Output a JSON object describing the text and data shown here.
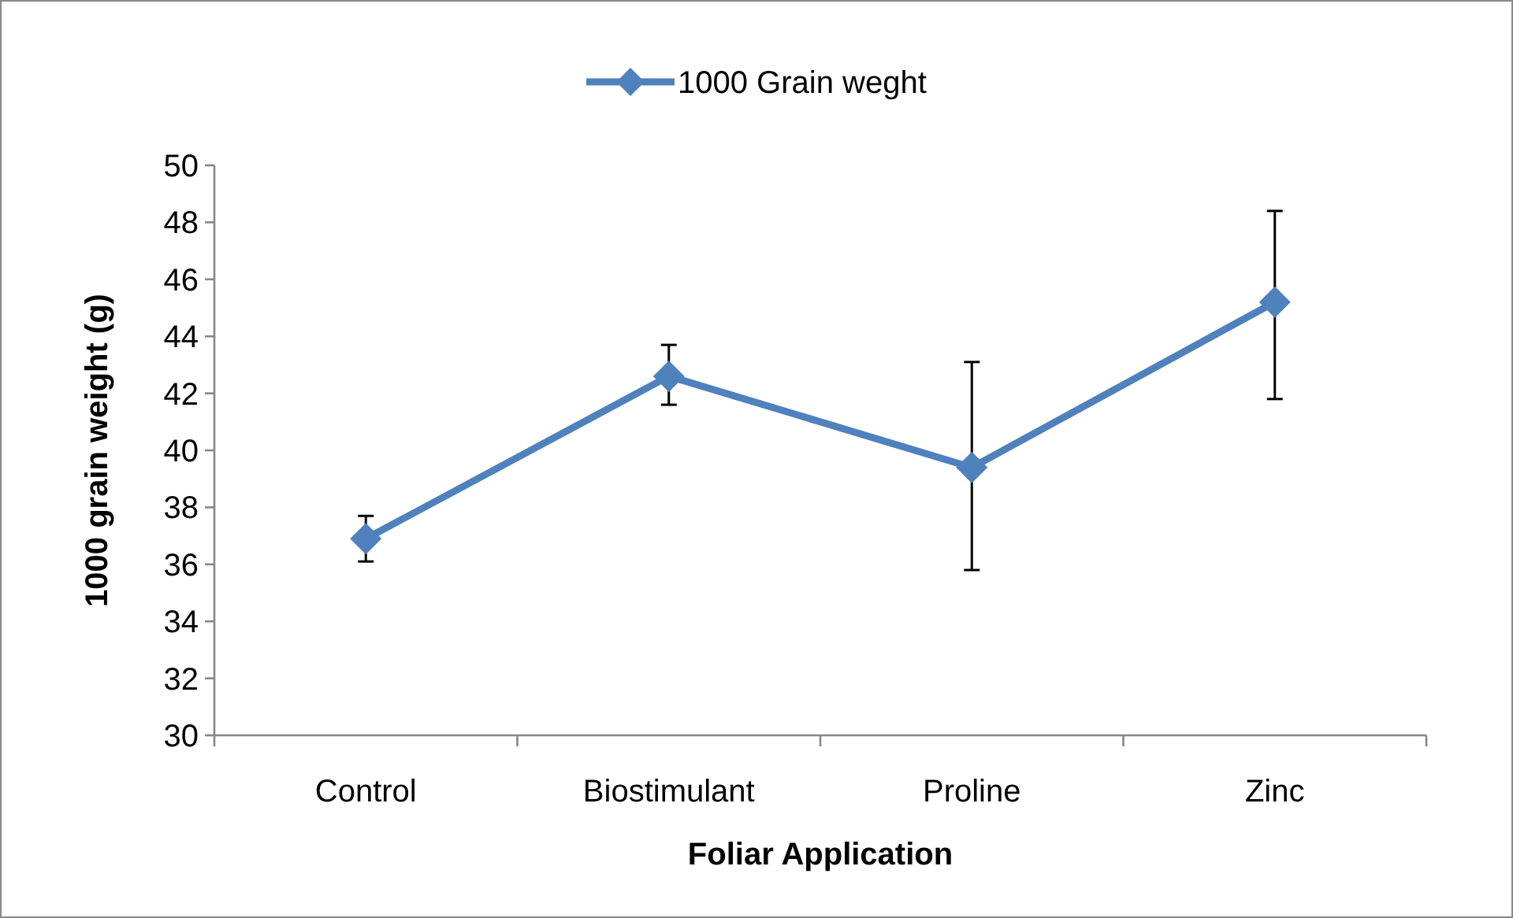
{
  "chart_data": {
    "type": "line",
    "xlabel": "Foliar Application",
    "ylabel": "1000 grain weight (g)",
    "categories": [
      "Control",
      "Biostimulant",
      "Proline",
      "Zinc"
    ],
    "series": [
      {
        "name": "1000 Grain weght",
        "color": "#4f81bd",
        "values": [
          36.9,
          42.6,
          39.4,
          45.2
        ],
        "errors": [
          [
            36.1,
            37.7
          ],
          [
            41.6,
            43.7
          ],
          [
            35.8,
            43.1
          ],
          [
            41.8,
            48.4
          ]
        ]
      }
    ],
    "ylim": [
      30,
      50
    ],
    "yticks": [
      30,
      32,
      34,
      36,
      38,
      40,
      42,
      44,
      46,
      48,
      50
    ],
    "grid": false,
    "legend": "top",
    "marker": "diamond",
    "line_style": "solid"
  }
}
